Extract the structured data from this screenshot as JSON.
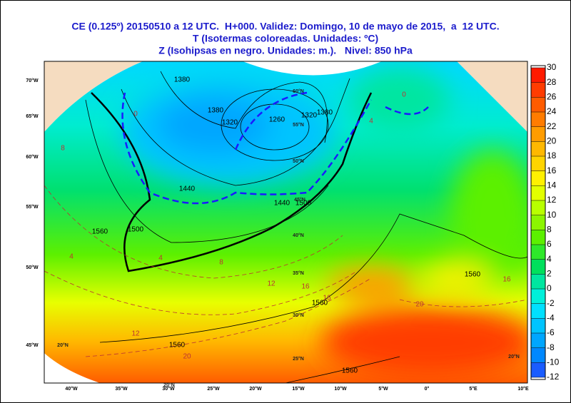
{
  "header": {
    "lines": [
      "CE (0.125º) 20150510 a 12 UTC.  H+000. Validez: Domingo, 10 de mayo de 2015,  a  12 UTC.",
      "T (Isotermas coloreadas. Unidades: ºC)",
      "Z (Isohipsas en negro. Unidades: m.).   Nivel: 850 hPa"
    ]
  },
  "colorbar": {
    "ticks": [
      30,
      28,
      26,
      24,
      22,
      20,
      18,
      16,
      14,
      12,
      10,
      8,
      6,
      4,
      2,
      0,
      -2,
      -4,
      -6,
      -8,
      -10,
      -12
    ],
    "colors": [
      "#ff1a00",
      "#ff3c00",
      "#ff5c00",
      "#ff7c00",
      "#ff9c00",
      "#ffb800",
      "#ffd400",
      "#fff000",
      "#e2ff00",
      "#b8ff00",
      "#8cf500",
      "#5cf000",
      "#2ee82a",
      "#00e05c",
      "#00e6a0",
      "#00f0da",
      "#00e0ff",
      "#00c4ff",
      "#00a6ff",
      "#0088ff",
      "#1a5cff"
    ]
  },
  "bottom_labels": [
    "40°W",
    "35°W",
    "30°W",
    "25°W",
    "20°W",
    "15°W",
    "10°W",
    "5°W",
    "0°",
    "5°E",
    "10°E"
  ],
  "left_labels": [
    "70°W",
    "65°W",
    "60°W",
    "55°W",
    "50°W",
    "45°W"
  ],
  "grid_labels": [
    "60°N",
    "55°N",
    "50°N",
    "45°N",
    "40°N",
    "35°N",
    "30°N",
    "25°N",
    "20°N",
    "20°N",
    "20°N"
  ],
  "contour_labels": [
    "1380",
    "1380",
    "1320",
    "1260",
    "1320",
    "1380",
    "1440",
    "1440",
    "1500",
    "1560",
    "1500",
    "1560",
    "1560",
    "1560",
    "1560"
  ],
  "isotherm_labels": [
    "8",
    "4",
    "0",
    "4",
    "8",
    "12",
    "12",
    "16",
    "16",
    "20",
    "20",
    "16",
    "4",
    "0"
  ]
}
